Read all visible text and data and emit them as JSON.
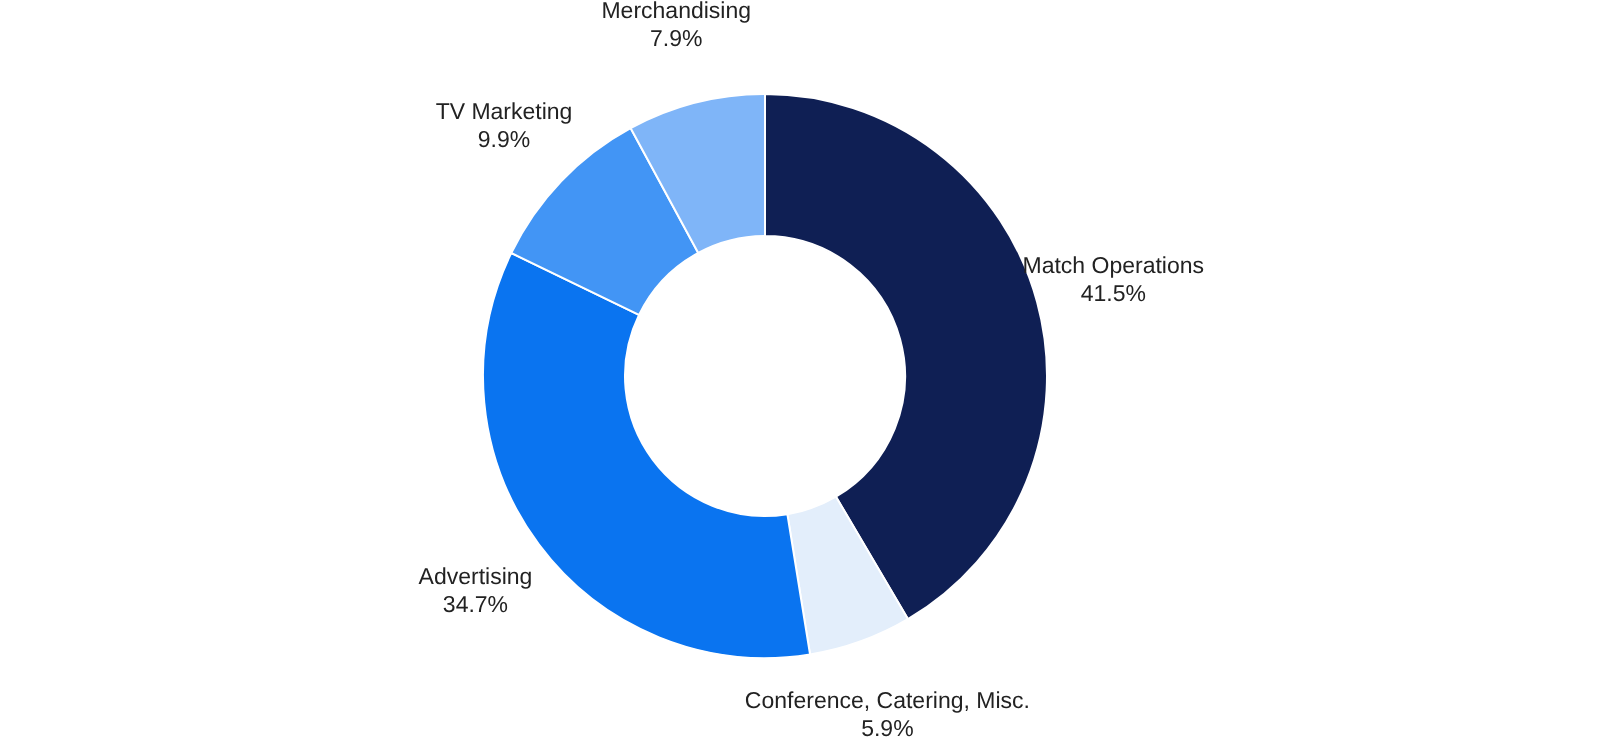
{
  "chart_data": {
    "type": "donut",
    "categories": [
      "Match Operations",
      "Conference, Catering, Misc.",
      "Advertising",
      "TV Marketing",
      "Merchandising"
    ],
    "values": [
      41.5,
      5.9,
      34.7,
      9.9,
      7.9
    ],
    "value_labels": [
      "41.5%",
      "5.9%",
      "34.7%",
      "9.9%",
      "7.9%"
    ],
    "colors": [
      "#0f1f54",
      "#e3eefb",
      "#0a74f0",
      "#4295f5",
      "#7fb5f8"
    ],
    "legend": false
  }
}
